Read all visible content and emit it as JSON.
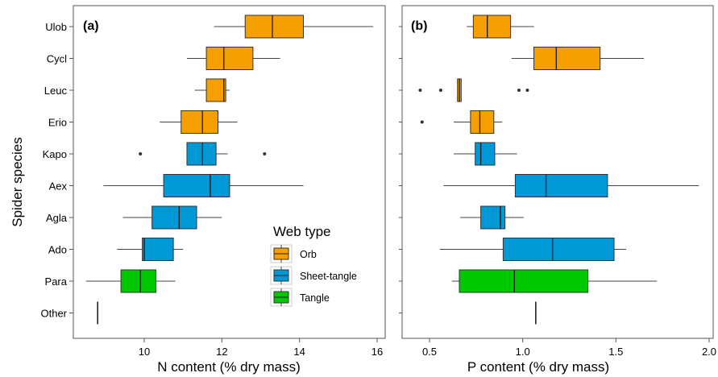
{
  "chart_data": [
    {
      "panel_label": "(a)",
      "type": "boxplot",
      "orientation": "horizontal",
      "xlabel": "N content (% dry mass)",
      "ylabel": "Spider species",
      "xlim": [
        8.2,
        16.3
      ],
      "xticks": [
        "10",
        "12",
        "14",
        "16"
      ],
      "xtick_values": [
        10,
        12,
        14,
        16
      ],
      "categories": [
        "Ulob",
        "Cycl",
        "Leuc",
        "Erio",
        "Kapo",
        "Aex",
        "Agla",
        "Ado",
        "Para",
        "Other"
      ],
      "boxes": [
        {
          "species": "Ulob",
          "web_type": "Orb",
          "min": 11.8,
          "q1": 12.6,
          "median": 13.3,
          "q3": 14.1,
          "max": 15.9,
          "outliers": []
        },
        {
          "species": "Cycl",
          "web_type": "Orb",
          "min": 11.1,
          "q1": 11.6,
          "median": 12.05,
          "q3": 12.8,
          "max": 13.5,
          "outliers": []
        },
        {
          "species": "Leuc",
          "web_type": "Orb",
          "min": 11.3,
          "q1": 11.6,
          "median": 12.05,
          "q3": 12.1,
          "max": 12.2,
          "outliers": []
        },
        {
          "species": "Erio",
          "web_type": "Orb",
          "min": 10.4,
          "q1": 10.95,
          "median": 11.5,
          "q3": 11.9,
          "max": 12.4,
          "outliers": []
        },
        {
          "species": "Kapo",
          "web_type": "Sheet-tangle",
          "min": 11.1,
          "q1": 11.1,
          "median": 11.5,
          "q3": 11.85,
          "max": 12.15,
          "outliers": [
            9.9,
            13.1
          ]
        },
        {
          "species": "Aex",
          "web_type": "Sheet-tangle",
          "min": 8.95,
          "q1": 10.5,
          "median": 11.7,
          "q3": 12.2,
          "max": 14.1,
          "outliers": []
        },
        {
          "species": "Agla",
          "web_type": "Sheet-tangle",
          "min": 9.45,
          "q1": 10.2,
          "median": 10.9,
          "q3": 11.35,
          "max": 12.0,
          "outliers": []
        },
        {
          "species": "Ado",
          "web_type": "Sheet-tangle",
          "min": 9.3,
          "q1": 9.95,
          "median": 10.0,
          "q3": 10.75,
          "max": 11.0,
          "outliers": []
        },
        {
          "species": "Para",
          "web_type": "Tangle",
          "min": 8.5,
          "q1": 9.4,
          "median": 9.9,
          "q3": 10.3,
          "max": 10.8,
          "outliers": []
        },
        {
          "species": "Other",
          "web_type": null,
          "min": 8.8,
          "q1": 8.8,
          "median": 8.8,
          "q3": 8.8,
          "max": 8.8,
          "outliers": []
        }
      ]
    },
    {
      "panel_label": "(b)",
      "type": "boxplot",
      "orientation": "horizontal",
      "xlabel": "P content (% dry mass)",
      "xlim": [
        0.38,
        2.0
      ],
      "xticks": [
        "0.5",
        "1.0",
        "1.5",
        "2.0"
      ],
      "xtick_values": [
        0.5,
        1.0,
        1.5,
        2.0
      ],
      "categories": [
        "Ulob",
        "Cycl",
        "Leuc",
        "Erio",
        "Kapo",
        "Aex",
        "Agla",
        "Ado",
        "Para",
        "Other"
      ],
      "boxes": [
        {
          "species": "Ulob",
          "web_type": "Orb",
          "min": 0.7,
          "q1": 0.735,
          "median": 0.81,
          "q3": 0.935,
          "max": 1.06,
          "outliers": []
        },
        {
          "species": "Cycl",
          "web_type": "Orb",
          "min": 0.94,
          "q1": 1.06,
          "median": 1.18,
          "q3": 1.415,
          "max": 1.65,
          "outliers": []
        },
        {
          "species": "Leuc",
          "web_type": "Orb",
          "min": 0.65,
          "q1": 0.65,
          "median": 0.66,
          "q3": 0.67,
          "max": 0.67,
          "outliers": [
            0.45,
            0.56,
            0.98,
            1.025
          ]
        },
        {
          "species": "Erio",
          "web_type": "Orb",
          "min": 0.63,
          "q1": 0.72,
          "median": 0.77,
          "q3": 0.845,
          "max": 0.89,
          "outliers": [
            0.46
          ]
        },
        {
          "species": "Kapo",
          "web_type": "Sheet-tangle",
          "min": 0.63,
          "q1": 0.745,
          "median": 0.775,
          "q3": 0.85,
          "max": 0.97,
          "outliers": []
        },
        {
          "species": "Aex",
          "web_type": "Sheet-tangle",
          "min": 0.575,
          "q1": 0.96,
          "median": 1.125,
          "q3": 1.455,
          "max": 1.945,
          "outliers": []
        },
        {
          "species": "Agla",
          "web_type": "Sheet-tangle",
          "min": 0.665,
          "q1": 0.775,
          "median": 0.88,
          "q3": 0.905,
          "max": 1.005,
          "outliers": []
        },
        {
          "species": "Ado",
          "web_type": "Sheet-tangle",
          "min": 0.555,
          "q1": 0.895,
          "median": 1.16,
          "q3": 1.49,
          "max": 1.555,
          "outliers": []
        },
        {
          "species": "Para",
          "web_type": "Tangle",
          "min": 0.62,
          "q1": 0.66,
          "median": 0.955,
          "q3": 1.35,
          "max": 1.72,
          "outliers": []
        },
        {
          "species": "Other",
          "web_type": null,
          "min": 1.07,
          "q1": 1.07,
          "median": 1.07,
          "q3": 1.07,
          "max": 1.07,
          "outliers": []
        }
      ]
    }
  ],
  "legend": {
    "title": "Web type",
    "placement": "lower-right of panel (a)",
    "items": [
      {
        "label": "Orb",
        "color": "#F5A000"
      },
      {
        "label": "Sheet-tangle",
        "color": "#0099D6"
      },
      {
        "label": "Tangle",
        "color": "#00C800"
      }
    ]
  },
  "style": {
    "panel_border_color": "#555555",
    "whisker_color": "#444444",
    "box_outline_color": "#333333",
    "grid": false
  }
}
